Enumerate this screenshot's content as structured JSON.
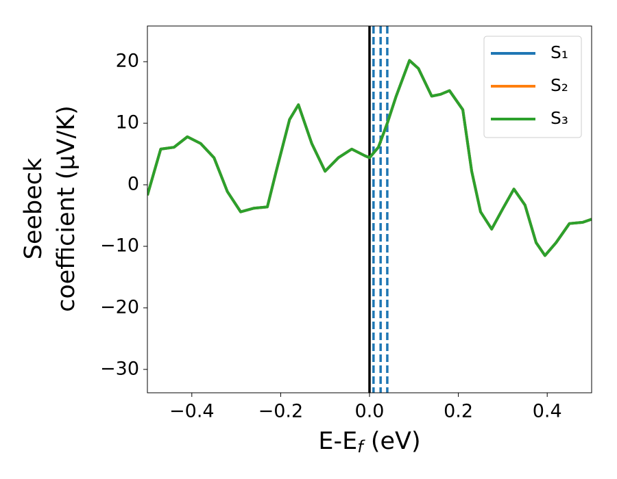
{
  "chart_data": {
    "type": "line",
    "xlabel": "E-E_f (eV)",
    "ylabel": [
      "Seebeck",
      "coefficient  (μV/K)"
    ],
    "x": [
      -0.5,
      -0.47,
      -0.44,
      -0.41,
      -0.38,
      -0.35,
      -0.32,
      -0.29,
      -0.26,
      -0.23,
      -0.21,
      -0.18,
      -0.16,
      -0.13,
      -0.1,
      -0.07,
      -0.04,
      -0.01,
      0.0,
      0.02,
      0.04,
      0.06,
      0.09,
      0.11,
      0.14,
      0.16,
      0.18,
      0.21,
      0.23,
      0.25,
      0.275,
      0.3,
      0.325,
      0.35,
      0.375,
      0.395,
      0.42,
      0.45,
      0.48,
      0.5
    ],
    "series": [
      {
        "name": "S₁",
        "color": "#1f77b4",
        "values": [
          -1.7,
          5.8,
          6.1,
          7.8,
          6.7,
          4.4,
          -1.1,
          -4.4,
          -3.8,
          -3.6,
          2.2,
          10.6,
          13,
          6.7,
          2.2,
          4.4,
          5.8,
          4.7,
          4.4,
          6.1,
          10,
          14.4,
          20.2,
          18.9,
          14.4,
          14.7,
          15.3,
          12.2,
          2.2,
          -4.4,
          -7.2,
          -3.9,
          -0.7,
          -3.3,
          -9.4,
          -11.5,
          -9.4,
          -6.3,
          -6.1,
          -5.6
        ]
      },
      {
        "name": "S₂",
        "color": "#ff7f0e",
        "values": [
          -1.7,
          5.8,
          6.1,
          7.8,
          6.7,
          4.4,
          -1.1,
          -4.4,
          -3.8,
          -3.6,
          2.2,
          10.6,
          13,
          6.7,
          2.2,
          4.4,
          5.8,
          4.7,
          4.4,
          6.1,
          10,
          14.4,
          20.2,
          18.9,
          14.4,
          14.7,
          15.3,
          12.2,
          2.2,
          -4.4,
          -7.2,
          -3.9,
          -0.7,
          -3.3,
          -9.4,
          -11.5,
          -9.4,
          -6.3,
          -6.1,
          -5.6
        ]
      },
      {
        "name": "S₃",
        "color": "#2ca02c",
        "values": [
          -1.7,
          5.8,
          6.1,
          7.8,
          6.7,
          4.4,
          -1.1,
          -4.4,
          -3.8,
          -3.6,
          2.2,
          10.6,
          13,
          6.7,
          2.2,
          4.4,
          5.8,
          4.7,
          4.4,
          6.1,
          10,
          14.4,
          20.2,
          18.9,
          14.4,
          14.7,
          15.3,
          12.2,
          2.2,
          -4.4,
          -7.2,
          -3.9,
          -0.7,
          -3.3,
          -9.4,
          -11.5,
          -9.4,
          -6.3,
          -6.1,
          -5.6
        ]
      }
    ],
    "vlines": [
      {
        "x": 0,
        "color": "#000000",
        "style": "solid"
      },
      {
        "x": 0.009,
        "color": "#1f77b4",
        "style": "dashed"
      },
      {
        "x": 0.025,
        "color": "#1f77b4",
        "style": "dashed"
      },
      {
        "x": 0.04,
        "color": "#1f77b4",
        "style": "dashed"
      }
    ],
    "xlim": [
      -0.5,
      0.5
    ],
    "ylim": [
      -33.8,
      25.8
    ],
    "xticks": [
      {
        "value": -0.4,
        "label": "−0.4"
      },
      {
        "value": -0.2,
        "label": "−0.2"
      },
      {
        "value": 0,
        "label": "0.0"
      },
      0.2,
      0.4
    ],
    "yticks": [
      {
        "value": -30,
        "label": "−30"
      },
      {
        "value": -20,
        "label": "−20"
      },
      {
        "value": -10,
        "label": "−10"
      },
      0,
      10,
      20
    ],
    "legend": "upper right",
    "grid": false
  }
}
